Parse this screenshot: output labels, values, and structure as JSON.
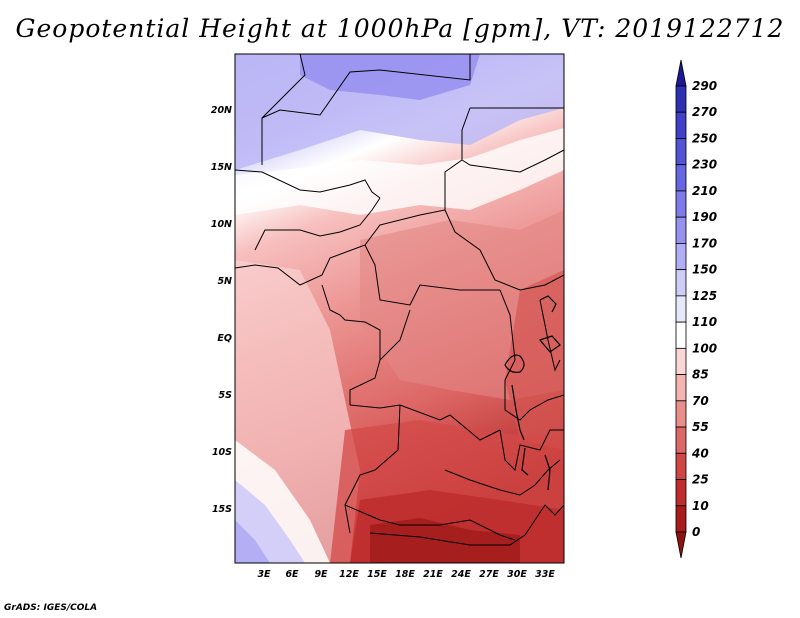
{
  "title": "Geopotential Height at 1000hPa [gpm], VT: 2019122712",
  "credit": "GrADS: IGES/COLA",
  "map": {
    "lat_labels": [
      "20N",
      "15N",
      "10N",
      "5N",
      "EQ",
      "5S",
      "10S",
      "15S"
    ],
    "lon_labels": [
      "3E",
      "6E",
      "9E",
      "12E",
      "15E",
      "18E",
      "21E",
      "24E",
      "27E",
      "30E",
      "33E"
    ]
  },
  "colorbar": {
    "labels": [
      "290",
      "270",
      "250",
      "230",
      "210",
      "190",
      "170",
      "150",
      "125",
      "110",
      "100",
      "85",
      "70",
      "55",
      "40",
      "25",
      "10",
      "0"
    ],
    "colors": [
      "#1c1896",
      "#2e2fb2",
      "#4040c8",
      "#5353d6",
      "#6665e2",
      "#7c7be9",
      "#9593ef",
      "#b0aef4",
      "#cfcdf8",
      "#e8e8fb",
      "#ffffff",
      "#fbd6d6",
      "#f4b4b2",
      "#ea8e8c",
      "#dd6766",
      "#d04646",
      "#c02b2b",
      "#a81c1c",
      "#8e1212"
    ]
  },
  "colors": {
    "border": "#000000"
  }
}
